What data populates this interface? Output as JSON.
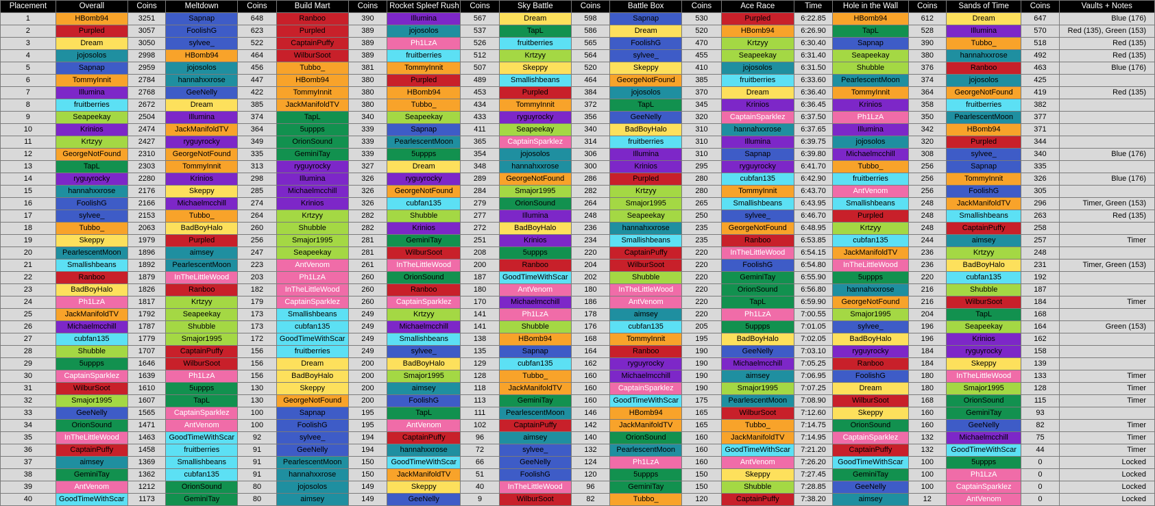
{
  "table": {
    "headers": [
      "Placement",
      "Overall",
      "Coins",
      "Meltdown",
      "Coins",
      "Build Mart",
      "Coins",
      "Rocket Spleef Rush",
      "Coins",
      "Sky Battle",
      "Coins",
      "Battle Box",
      "Coins",
      "Ace Race",
      "Time",
      "Hole in the Wall",
      "Coins",
      "Sands of Time",
      "Coins",
      "Vaults + Notes"
    ]
  },
  "player_colors": {
    "HBomb94": "#f8a32a",
    "Purpled": "#c8202a",
    "Dream": "#fde05c",
    "jojosolos": "#1f8fa0",
    "Sapnap": "#3e5cc7",
    "TommyInnit": "#f8a32a",
    "Illumina": "#7d27c8",
    "fruitberries": "#5ce0f4",
    "Seapeekay": "#a4d844",
    "Krinios": "#7d27c8",
    "Krtzyy": "#a4d844",
    "GeorgeNotFound": "#f8a32a",
    "TapL": "#12914f",
    "ryguyrocky": "#7d27c8",
    "hannahxxrose": "#1f8fa0",
    "FoolishG": "#3e5cc7",
    "sylvee_": "#3e5cc7",
    "Tubbo_": "#f8a32a",
    "Skeppy": "#fde05c",
    "PearlescentMoon": "#1f8fa0",
    "Smallishbeans": "#5ce0f4",
    "Ranboo": "#c8202a",
    "BadBoyHalo": "#fde05c",
    "Ph1LzA": "#f06ca8",
    "JackManifoldTV": "#f8a32a",
    "Michaelmcchill": "#7d27c8",
    "cubfan135": "#5ce0f4",
    "Shubble": "#a4d844",
    "5uppps": "#12914f",
    "CaptainSparklez": "#f06ca8",
    "WilburSoot": "#c8202a",
    "Smajor1995": "#a4d844",
    "GeeNelly": "#3e5cc7",
    "OrionSound": "#12914f",
    "InTheLittleWood": "#f06ca8",
    "CaptainPuffy": "#c8202a",
    "aimsey": "#1f8fa0",
    "GeminiTay": "#12914f",
    "AntVenom": "#f06ca8",
    "GoodTimeWithScar": "#5ce0f4"
  },
  "rows": [
    [
      "1",
      "HBomb94",
      "3251",
      "Sapnap",
      "648",
      "Ranboo",
      "390",
      "Illumina",
      "567",
      "Dream",
      "598",
      "Sapnap",
      "530",
      "Purpled",
      "6:22.85",
      "HBomb94",
      "612",
      "Dream",
      "647",
      "Blue (176)"
    ],
    [
      "2",
      "Purpled",
      "3057",
      "FoolishG",
      "623",
      "Purpled",
      "389",
      "jojosolos",
      "537",
      "TapL",
      "586",
      "Dream",
      "520",
      "HBomb94",
      "6:26.90",
      "TapL",
      "528",
      "Illumina",
      "570",
      "Red (135), Green (153)"
    ],
    [
      "3",
      "Dream",
      "3050",
      "sylvee_",
      "522",
      "CaptainPuffy",
      "389",
      "Ph1LzA",
      "526",
      "fruitberries",
      "565",
      "FoolishG",
      "470",
      "Krtzyy",
      "6:30.40",
      "Sapnap",
      "390",
      "Tubbo_",
      "518",
      "Red (135)"
    ],
    [
      "4",
      "jojosolos",
      "2998",
      "HBomb94",
      "464",
      "WilburSoot",
      "389",
      "fruitberries",
      "512",
      "Krtzyy",
      "564",
      "sylvee_",
      "455",
      "Seapeekay",
      "6:31.40",
      "Seapeekay",
      "380",
      "hannahxxrose",
      "492",
      "Red (135)"
    ],
    [
      "5",
      "Sapnap",
      "2959",
      "jojosolos",
      "456",
      "Tubbo_",
      "381",
      "TommyInnit",
      "507",
      "Skeppy",
      "520",
      "Skeppy",
      "410",
      "jojosolos",
      "6:31.50",
      "Shubble",
      "376",
      "Ranboo",
      "463",
      "Blue (176)"
    ],
    [
      "6",
      "TommyInnit",
      "2784",
      "hannahxxrose",
      "447",
      "HBomb94",
      "380",
      "Purpled",
      "489",
      "Smallishbeans",
      "464",
      "GeorgeNotFound",
      "385",
      "fruitberries",
      "6:33.60",
      "PearlescentMoon",
      "374",
      "jojosolos",
      "425",
      ""
    ],
    [
      "7",
      "Illumina",
      "2768",
      "GeeNelly",
      "422",
      "TommyInnit",
      "380",
      "HBomb94",
      "453",
      "Purpled",
      "384",
      "jojosolos",
      "370",
      "Dream",
      "6:36.40",
      "TommyInnit",
      "364",
      "GeorgeNotFound",
      "419",
      "Red (135)"
    ],
    [
      "8",
      "fruitberries",
      "2672",
      "Dream",
      "385",
      "JackManifoldTV",
      "380",
      "Tubbo_",
      "434",
      "TommyInnit",
      "372",
      "TapL",
      "345",
      "Krinios",
      "6:36.45",
      "Krinios",
      "358",
      "fruitberries",
      "382",
      ""
    ],
    [
      "9",
      "Seapeekay",
      "2504",
      "Illumina",
      "374",
      "TapL",
      "340",
      "Seapeekay",
      "433",
      "ryguyrocky",
      "356",
      "GeeNelly",
      "320",
      "CaptainSparklez",
      "6:37.50",
      "Ph1LzA",
      "350",
      "PearlescentMoon",
      "377",
      ""
    ],
    [
      "10",
      "Krinios",
      "2474",
      "JackManifoldTV",
      "364",
      "5uppps",
      "339",
      "Sapnap",
      "411",
      "Seapeekay",
      "340",
      "BadBoyHalo",
      "310",
      "hannahxxrose",
      "6:37.65",
      "Illumina",
      "342",
      "HBomb94",
      "371",
      ""
    ],
    [
      "11",
      "Krtzyy",
      "2427",
      "ryguyrocky",
      "349",
      "OrionSound",
      "339",
      "PearlescentMoon",
      "365",
      "CaptainSparklez",
      "314",
      "fruitberries",
      "310",
      "Illumina",
      "6:39.75",
      "jojosolos",
      "320",
      "Purpled",
      "344",
      ""
    ],
    [
      "12",
      "GeorgeNotFound",
      "2310",
      "GeorgeNotFound",
      "335",
      "GeminiTay",
      "339",
      "5uppps",
      "354",
      "jojosolos",
      "306",
      "Illumina",
      "310",
      "Sapnap",
      "6:39.80",
      "Michaelmcchill",
      "308",
      "sylvee_",
      "340",
      "Blue (176)"
    ],
    [
      "13",
      "TapL",
      "2303",
      "TommyInnit",
      "313",
      "ryguyrocky",
      "327",
      "Dream",
      "348",
      "hannahxxrose",
      "300",
      "Krinios",
      "295",
      "ryguyrocky",
      "6:41.70",
      "Tubbo_",
      "256",
      "Sapnap",
      "335",
      ""
    ],
    [
      "14",
      "ryguyrocky",
      "2280",
      "Krinios",
      "298",
      "Illumina",
      "326",
      "ryguyrocky",
      "289",
      "GeorgeNotFound",
      "286",
      "Purpled",
      "280",
      "cubfan135",
      "6:42.90",
      "fruitberries",
      "256",
      "TommyInnit",
      "326",
      "Blue (176)"
    ],
    [
      "15",
      "hannahxxrose",
      "2176",
      "Skeppy",
      "285",
      "Michaelmcchill",
      "326",
      "GeorgeNotFound",
      "284",
      "Smajor1995",
      "282",
      "Krtzyy",
      "280",
      "TommyInnit",
      "6:43.70",
      "AntVenom",
      "256",
      "FoolishG",
      "305",
      ""
    ],
    [
      "16",
      "FoolishG",
      "2166",
      "Michaelmcchill",
      "274",
      "Krinios",
      "326",
      "cubfan135",
      "279",
      "OrionSound",
      "264",
      "Smajor1995",
      "265",
      "Smallishbeans",
      "6:43.95",
      "Smallishbeans",
      "248",
      "JackManifoldTV",
      "296",
      "Timer, Green (153)"
    ],
    [
      "17",
      "sylvee_",
      "2153",
      "Tubbo_",
      "264",
      "Krtzyy",
      "282",
      "Shubble",
      "277",
      "Illumina",
      "248",
      "Seapeekay",
      "250",
      "sylvee_",
      "6:46.70",
      "Purpled",
      "248",
      "Smallishbeans",
      "263",
      "Red (135)"
    ],
    [
      "18",
      "Tubbo_",
      "2063",
      "BadBoyHalo",
      "260",
      "Shubble",
      "282",
      "Krinios",
      "272",
      "BadBoyHalo",
      "236",
      "hannahxxrose",
      "235",
      "GeorgeNotFound",
      "6:48.95",
      "Krtzyy",
      "248",
      "CaptainPuffy",
      "258",
      ""
    ],
    [
      "19",
      "Skeppy",
      "1979",
      "Purpled",
      "256",
      "Smajor1995",
      "281",
      "GeminiTay",
      "251",
      "Krinios",
      "234",
      "Smallishbeans",
      "235",
      "Ranboo",
      "6:53.85",
      "cubfan135",
      "244",
      "aimsey",
      "257",
      "Timer"
    ],
    [
      "20",
      "PearlescentMoon",
      "1896",
      "aimsey",
      "247",
      "Seapeekay",
      "281",
      "WilburSoot",
      "208",
      "5uppps",
      "220",
      "CaptainPuffy",
      "220",
      "InTheLittleWood",
      "6:54.15",
      "JackManifoldTV",
      "236",
      "Krtzyy",
      "248",
      ""
    ],
    [
      "21",
      "Smallishbeans",
      "1892",
      "PearlescentMoon",
      "223",
      "AntVenom",
      "261",
      "InTheLittleWood",
      "200",
      "Ranboo",
      "204",
      "WilburSoot",
      "220",
      "FoolishG",
      "6:54.80",
      "InTheLittleWood",
      "236",
      "BadBoyHalo",
      "231",
      "Timer, Green (153)"
    ],
    [
      "22",
      "Ranboo",
      "1879",
      "InTheLittleWood",
      "203",
      "Ph1LzA",
      "260",
      "OrionSound",
      "187",
      "GoodTimeWithScar",
      "202",
      "Shubble",
      "220",
      "GeminiTay",
      "6:55.90",
      "5uppps",
      "220",
      "cubfan135",
      "192",
      ""
    ],
    [
      "23",
      "BadBoyHalo",
      "1826",
      "Ranboo",
      "182",
      "InTheLittleWood",
      "260",
      "Ranboo",
      "180",
      "AntVenom",
      "180",
      "InTheLittleWood",
      "220",
      "OrionSound",
      "6:56.80",
      "hannahxxrose",
      "216",
      "Shubble",
      "187",
      ""
    ],
    [
      "24",
      "Ph1LzA",
      "1817",
      "Krtzyy",
      "179",
      "CaptainSparklez",
      "260",
      "CaptainSparklez",
      "170",
      "Michaelmcchill",
      "186",
      "AntVenom",
      "220",
      "TapL",
      "6:59.90",
      "GeorgeNotFound",
      "216",
      "WilburSoot",
      "184",
      "Timer"
    ],
    [
      "25",
      "JackManifoldTV",
      "1792",
      "Seapeekay",
      "173",
      "Smallishbeans",
      "249",
      "Krtzyy",
      "141",
      "Ph1LzA",
      "178",
      "aimsey",
      "220",
      "Ph1LzA",
      "7:00.55",
      "Smajor1995",
      "204",
      "TapL",
      "168",
      ""
    ],
    [
      "26",
      "Michaelmcchill",
      "1787",
      "Shubble",
      "173",
      "cubfan135",
      "249",
      "Michaelmcchill",
      "141",
      "Shubble",
      "176",
      "cubfan135",
      "205",
      "5uppps",
      "7:01.05",
      "sylvee_",
      "196",
      "Seapeekay",
      "164",
      "Green (153)"
    ],
    [
      "27",
      "cubfan135",
      "1779",
      "Smajor1995",
      "172",
      "GoodTimeWithScar",
      "249",
      "Smallishbeans",
      "138",
      "HBomb94",
      "168",
      "TommyInnit",
      "195",
      "BadBoyHalo",
      "7:02.05",
      "BadBoyHalo",
      "196",
      "Krinios",
      "162",
      ""
    ],
    [
      "28",
      "Shubble",
      "1707",
      "CaptainPuffy",
      "156",
      "fruitberries",
      "249",
      "sylvee_",
      "135",
      "Sapnap",
      "164",
      "Ranboo",
      "190",
      "GeeNelly",
      "7:03.10",
      "ryguyrocky",
      "184",
      "ryguyrocky",
      "158",
      ""
    ],
    [
      "29",
      "5uppps",
      "1646",
      "WilburSoot",
      "156",
      "Dream",
      "200",
      "BadBoyHalo",
      "129",
      "cubfan135",
      "162",
      "ryguyrocky",
      "190",
      "Michaelmcchill",
      "7:05.25",
      "Ranboo",
      "184",
      "Skeppy",
      "139",
      ""
    ],
    [
      "30",
      "CaptainSparklez",
      "1639",
      "Ph1LzA",
      "156",
      "BadBoyHalo",
      "200",
      "Smajor1995",
      "128",
      "Tubbo_",
      "160",
      "Michaelmcchill",
      "190",
      "aimsey",
      "7:06.95",
      "FoolishG",
      "180",
      "InTheLittleWood",
      "133",
      "Timer"
    ],
    [
      "31",
      "WilburSoot",
      "1610",
      "5uppps",
      "130",
      "Skeppy",
      "200",
      "aimsey",
      "118",
      "JackManifoldTV",
      "160",
      "CaptainSparklez",
      "190",
      "Smajor1995",
      "7:07.25",
      "Dream",
      "180",
      "Smajor1995",
      "128",
      "Timer"
    ],
    [
      "32",
      "Smajor1995",
      "1607",
      "TapL",
      "130",
      "GeorgeNotFound",
      "200",
      "FoolishG",
      "113",
      "GeminiTay",
      "160",
      "GoodTimeWithScar",
      "175",
      "PearlescentMoon",
      "7:08.90",
      "WilburSoot",
      "168",
      "OrionSound",
      "115",
      "Timer"
    ],
    [
      "33",
      "GeeNelly",
      "1565",
      "CaptainSparklez",
      "100",
      "Sapnap",
      "195",
      "TapL",
      "111",
      "PearlescentMoon",
      "146",
      "HBomb94",
      "165",
      "WilburSoot",
      "7:12.60",
      "Skeppy",
      "160",
      "GeminiTay",
      "93",
      ""
    ],
    [
      "34",
      "OrionSound",
      "1471",
      "AntVenom",
      "100",
      "FoolishG",
      "195",
      "AntVenom",
      "102",
      "CaptainPuffy",
      "142",
      "JackManifoldTV",
      "165",
      "Tubbo_",
      "7:14.75",
      "OrionSound",
      "160",
      "GeeNelly",
      "82",
      "Timer"
    ],
    [
      "35",
      "InTheLittleWood",
      "1463",
      "GoodTimeWithScar",
      "92",
      "sylvee_",
      "194",
      "CaptainPuffy",
      "96",
      "aimsey",
      "140",
      "OrionSound",
      "160",
      "JackManifoldTV",
      "7:14.95",
      "CaptainSparklez",
      "132",
      "Michaelmcchill",
      "75",
      "Timer"
    ],
    [
      "36",
      "CaptainPuffy",
      "1458",
      "fruitberries",
      "91",
      "GeeNelly",
      "194",
      "hannahxxrose",
      "72",
      "sylvee_",
      "132",
      "PearlescentMoon",
      "160",
      "GoodTimeWithScar",
      "7:21.20",
      "CaptainPuffy",
      "132",
      "GoodTimeWithScar",
      "44",
      "Timer"
    ],
    [
      "37",
      "aimsey",
      "1369",
      "Smallishbeans",
      "91",
      "PearlescentMoon",
      "150",
      "GoodTimeWithScar",
      "66",
      "GeeNelly",
      "124",
      "Ph1LzA",
      "160",
      "AntVenom",
      "7:26.20",
      "GoodTimeWithScar",
      "100",
      "5uppps",
      "0",
      "Locked"
    ],
    [
      "38",
      "GeminiTay",
      "1362",
      "cubfan135",
      "91",
      "hannahxxrose",
      "150",
      "JackManifoldTV",
      "51",
      "FoolishG",
      "120",
      "5uppps",
      "150",
      "Skeppy",
      "7:27.45",
      "GeminiTay",
      "100",
      "Ph1LzA",
      "0",
      "Locked"
    ],
    [
      "39",
      "AntVenom",
      "1212",
      "OrionSound",
      "80",
      "jojosolos",
      "149",
      "Skeppy",
      "40",
      "InTheLittleWood",
      "96",
      "GeminiTay",
      "150",
      "Shubble",
      "7:28.85",
      "GeeNelly",
      "100",
      "CaptainSparklez",
      "0",
      "Locked"
    ],
    [
      "40",
      "GoodTimeWithScar",
      "1173",
      "GeminiTay",
      "80",
      "aimsey",
      "149",
      "GeeNelly",
      "9",
      "WilburSoot",
      "82",
      "Tubbo_",
      "120",
      "CaptainPuffy",
      "7:38.20",
      "aimsey",
      "12",
      "AntVenom",
      "0",
      "Locked"
    ]
  ]
}
